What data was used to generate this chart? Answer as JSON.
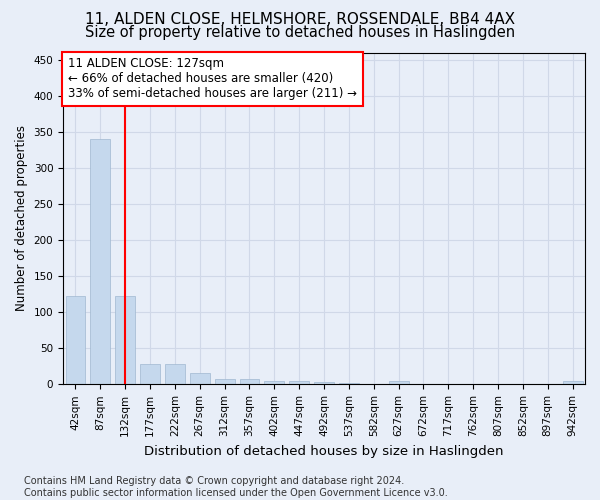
{
  "title1": "11, ALDEN CLOSE, HELMSHORE, ROSSENDALE, BB4 4AX",
  "title2": "Size of property relative to detached houses in Haslingden",
  "xlabel": "Distribution of detached houses by size in Haslingden",
  "ylabel": "Number of detached properties",
  "categories": [
    "42sqm",
    "87sqm",
    "132sqm",
    "177sqm",
    "222sqm",
    "267sqm",
    "312sqm",
    "357sqm",
    "402sqm",
    "447sqm",
    "492sqm",
    "537sqm",
    "582sqm",
    "627sqm",
    "672sqm",
    "717sqm",
    "762sqm",
    "807sqm",
    "852sqm",
    "897sqm",
    "942sqm"
  ],
  "values": [
    122,
    340,
    122,
    28,
    28,
    15,
    8,
    7,
    5,
    4,
    3,
    2,
    0,
    5,
    0,
    0,
    0,
    0,
    0,
    0,
    4
  ],
  "bar_color": "#c5d8ed",
  "bar_edge_color": "#a0b8d0",
  "grid_color": "#d0d8e8",
  "bg_color": "#e8eef8",
  "red_line_index": 2,
  "annotation_line1": "11 ALDEN CLOSE: 127sqm",
  "annotation_line2": "← 66% of detached houses are smaller (420)",
  "annotation_line3": "33% of semi-detached houses are larger (211) →",
  "annotation_box_color": "white",
  "annotation_box_edge_color": "red",
  "red_line_color": "red",
  "ylim": [
    0,
    460
  ],
  "yticks": [
    0,
    50,
    100,
    150,
    200,
    250,
    300,
    350,
    400,
    450
  ],
  "footer": "Contains HM Land Registry data © Crown copyright and database right 2024.\nContains public sector information licensed under the Open Government Licence v3.0.",
  "title1_fontsize": 11,
  "title2_fontsize": 10.5,
  "xlabel_fontsize": 9.5,
  "ylabel_fontsize": 8.5,
  "tick_fontsize": 7.5,
  "annotation_fontsize": 8.5,
  "footer_fontsize": 7
}
